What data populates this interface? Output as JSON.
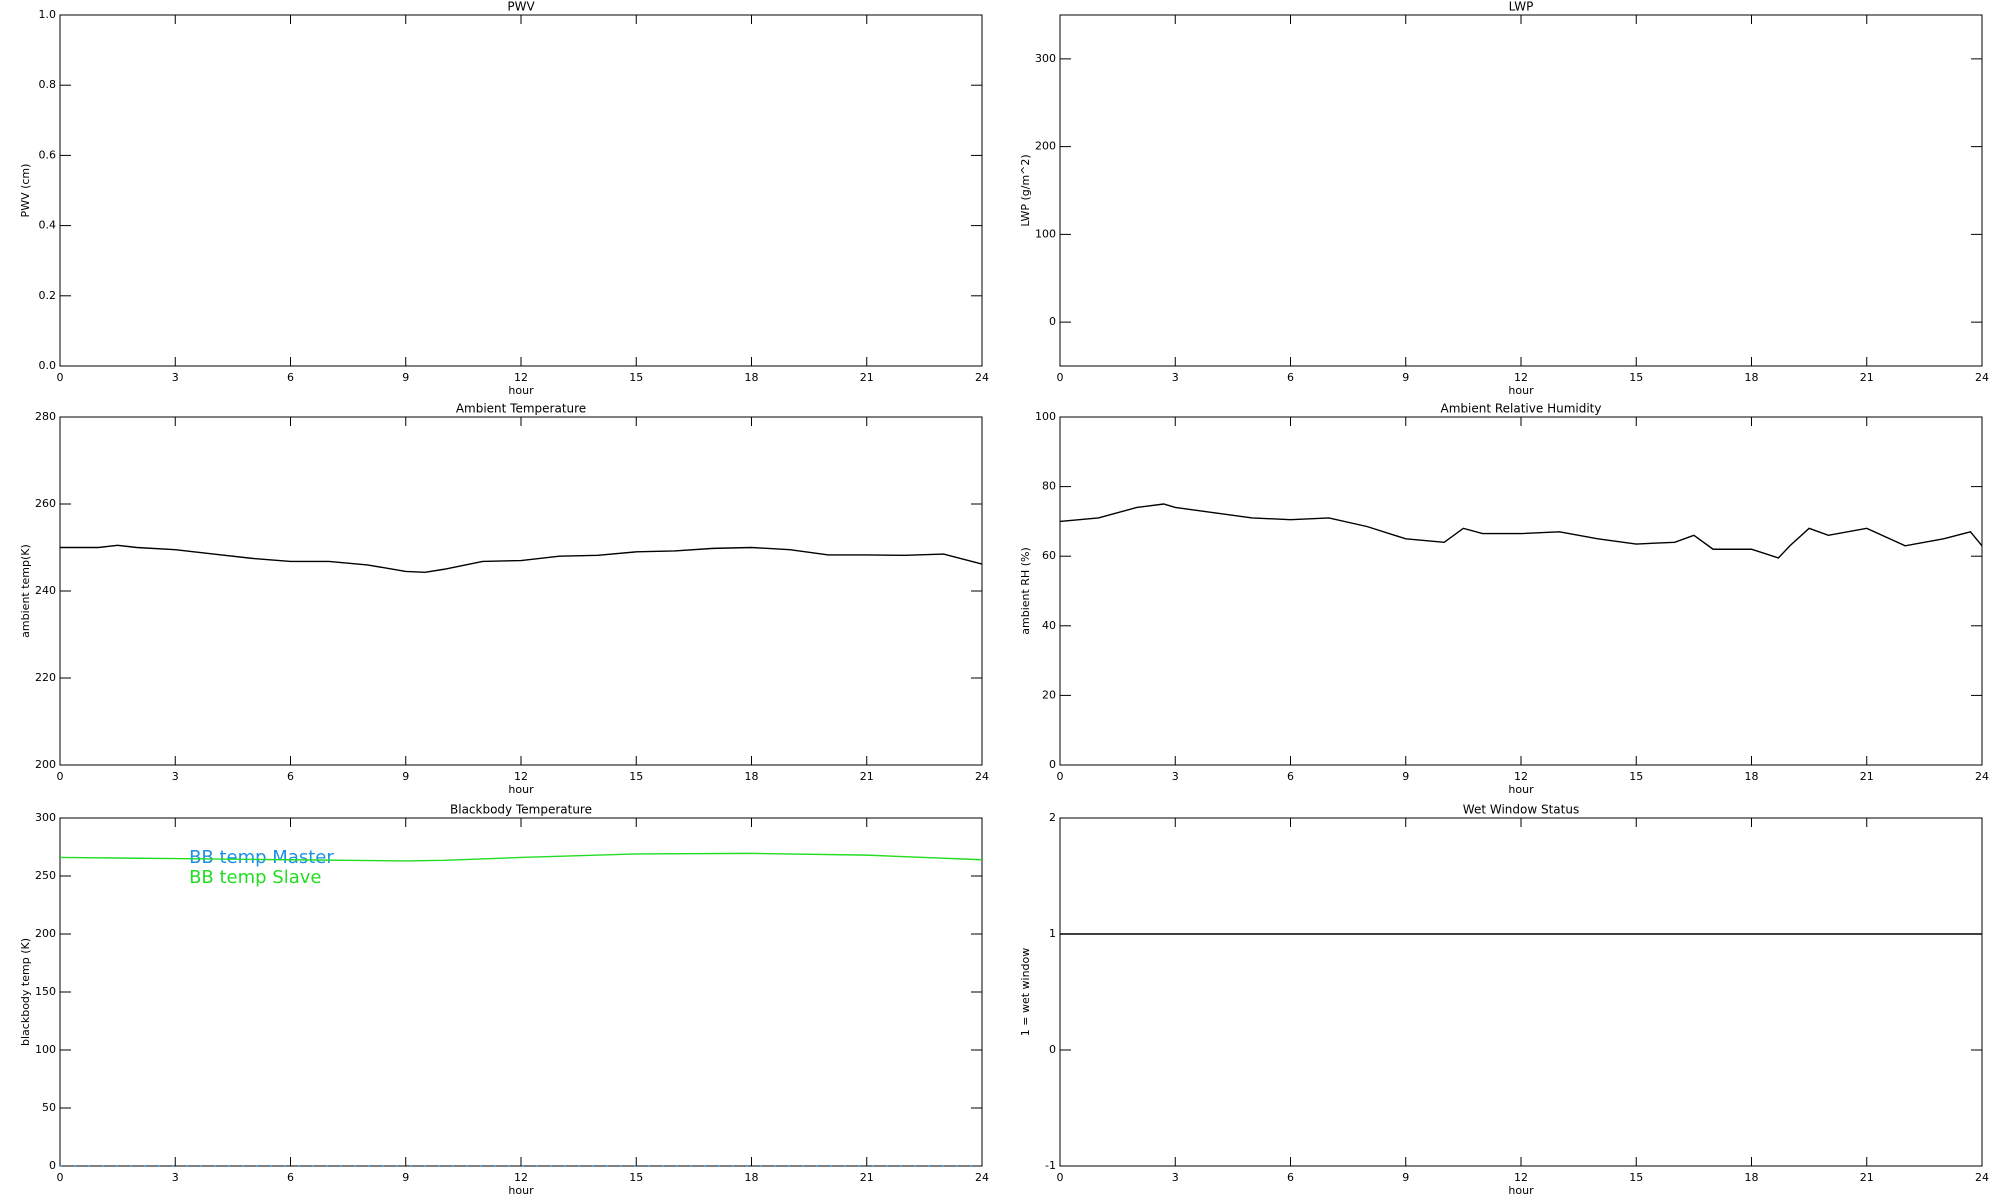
{
  "chart_data": [
    {
      "type": "line",
      "title": "PWV",
      "xlabel": "hour",
      "ylabel": "PWV (cm)",
      "xlim": [
        0,
        24
      ],
      "xticks": [
        0,
        3,
        6,
        9,
        12,
        15,
        18,
        21,
        24
      ],
      "ylim": [
        0,
        1
      ],
      "yticks": [
        {
          "value": 0,
          "label": "0.0"
        },
        0.2,
        0.4,
        0.6,
        0.8,
        {
          "value": 1,
          "label": "1.0"
        }
      ]
    },
    {
      "type": "line",
      "title": "LWP",
      "xlabel": "hour",
      "ylabel": "LWP (g/m^2)",
      "xlim": [
        0,
        24
      ],
      "xticks": [
        0,
        3,
        6,
        9,
        12,
        15,
        18,
        21,
        24
      ],
      "ylim": [
        -50,
        350
      ],
      "yticks": [
        0,
        100,
        200,
        300
      ]
    },
    {
      "type": "line",
      "title": "Ambient Temperature",
      "xlabel": "hour",
      "ylabel": "ambient temp(K)",
      "xlim": [
        0,
        24
      ],
      "xticks": [
        0,
        3,
        6,
        9,
        12,
        15,
        18,
        21,
        24
      ],
      "ylim": [
        200,
        280
      ],
      "yticks": [
        200,
        220,
        240,
        260,
        280
      ],
      "series": [
        {
          "color": "#000000",
          "x": [
            0,
            1,
            1.5,
            2,
            3,
            4,
            5,
            6,
            7,
            8,
            9,
            9.5,
            10,
            11,
            12,
            13,
            14,
            15,
            16,
            17,
            18,
            19,
            20,
            21,
            22,
            23,
            24
          ],
          "values": [
            250,
            250,
            250.5,
            250,
            249.5,
            248.5,
            247.5,
            246.8,
            246.8,
            246,
            244.5,
            244.3,
            245,
            246.8,
            247,
            248,
            248.2,
            249,
            249.2,
            249.8,
            250,
            249.5,
            248.3,
            248.3,
            248.2,
            248.5,
            246.2
          ]
        }
      ]
    },
    {
      "type": "line",
      "title": "Ambient Relative Humidity",
      "xlabel": "hour",
      "ylabel": "ambient RH (%)",
      "xlim": [
        0,
        24
      ],
      "xticks": [
        0,
        3,
        6,
        9,
        12,
        15,
        18,
        21,
        24
      ],
      "ylim": [
        0,
        100
      ],
      "yticks": [
        0,
        20,
        40,
        60,
        80,
        100
      ],
      "series": [
        {
          "color": "#000000",
          "x": [
            0,
            1,
            2,
            2.7,
            3,
            4,
            5,
            6,
            7,
            8,
            9,
            10,
            10.5,
            11,
            12,
            13,
            14,
            15,
            16,
            16.5,
            17,
            18,
            18.7,
            19,
            19.5,
            20,
            21,
            22,
            23,
            23.7,
            24
          ],
          "values": [
            70,
            71,
            74,
            75,
            74,
            72.5,
            71,
            70.5,
            71,
            68.5,
            65,
            64,
            68,
            66.5,
            66.5,
            67,
            65,
            63.5,
            64,
            66,
            62,
            62,
            59.5,
            63,
            68,
            66,
            68,
            63,
            65,
            67,
            63
          ]
        }
      ]
    },
    {
      "type": "line",
      "title": "Blackbody Temperature",
      "xlabel": "hour",
      "ylabel": "blackbody temp (K)",
      "xlim": [
        0,
        24
      ],
      "xticks": [
        0,
        3,
        6,
        9,
        12,
        15,
        18,
        21,
        24
      ],
      "ylim": [
        0,
        300
      ],
      "yticks": [
        0,
        50,
        100,
        150,
        200,
        250,
        300
      ],
      "legend": "upper left",
      "series": [
        {
          "name": "BB temp Master",
          "color": "#1e8fe6",
          "dash": true,
          "x": [
            0,
            3,
            6,
            9,
            12,
            15,
            18,
            21,
            24
          ],
          "values": [
            0,
            0,
            0,
            0,
            0,
            0,
            0,
            0,
            0
          ]
        },
        {
          "name": "BB temp Slave",
          "color": "#22dd22",
          "x": [
            0,
            3,
            6,
            9,
            10,
            12,
            15,
            18,
            21,
            24
          ],
          "values": [
            266,
            265,
            264,
            263,
            263.5,
            266,
            269,
            269.5,
            268,
            264
          ]
        }
      ]
    },
    {
      "type": "line",
      "title": "Wet Window Status",
      "xlabel": "hour",
      "ylabel": "1 = wet window",
      "xlim": [
        0,
        24
      ],
      "xticks": [
        0,
        3,
        6,
        9,
        12,
        15,
        18,
        21,
        24
      ],
      "ylim": [
        -1,
        2
      ],
      "yticks": [
        -1,
        0,
        1,
        2
      ],
      "series": [
        {
          "color": "#000000",
          "x": [
            0,
            24
          ],
          "values": [
            1,
            1
          ]
        }
      ]
    }
  ]
}
